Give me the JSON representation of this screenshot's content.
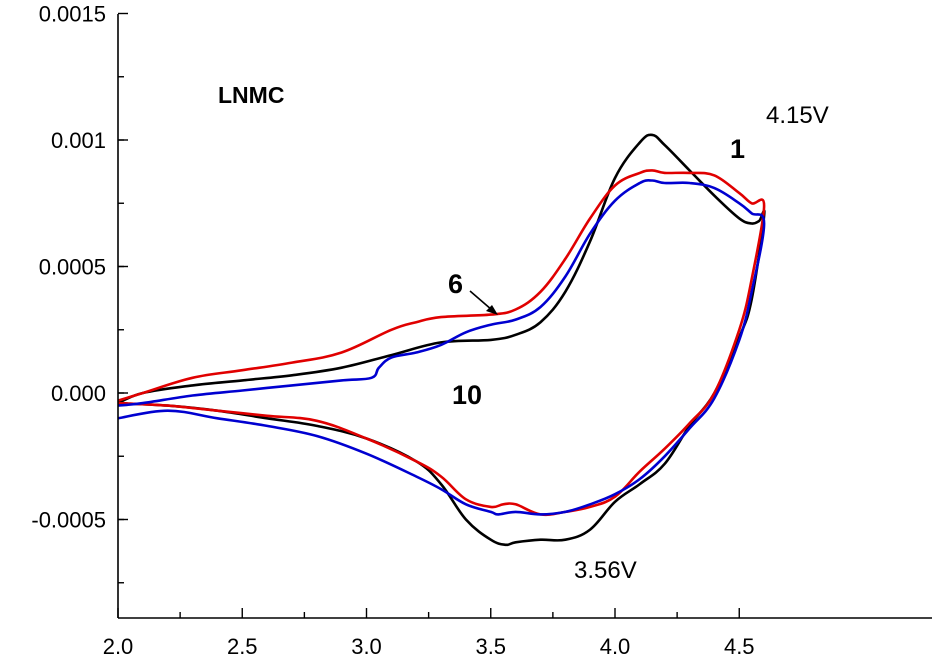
{
  "chart_data": {
    "type": "line",
    "title": "",
    "xlabel": "",
    "ylabel": "",
    "xlim": [
      2.0,
      4.6
    ],
    "ylim": [
      -0.00088,
      0.0015
    ],
    "xticks": [
      "2.0",
      "2.5",
      "3.0",
      "3.5",
      "4.0",
      "4.5"
    ],
    "yticks": [
      "0.0015",
      "0.001",
      "0.0005",
      "0.000",
      "-0.0005"
    ],
    "grid": false,
    "annotations": {
      "sample": "LNMC",
      "peak_ox": "4.15V",
      "peak_red": "3.56V",
      "cycle_1": "1",
      "cycle_6": "6",
      "cycle_10": "10"
    },
    "series": [
      {
        "name": "1",
        "color": "#000000",
        "x": [
          2.0,
          2.1,
          2.3,
          2.5,
          2.7,
          2.9,
          3.1,
          3.3,
          3.5,
          3.6,
          3.7,
          3.8,
          3.9,
          4.0,
          4.1,
          4.15,
          4.2,
          4.3,
          4.4,
          4.5,
          4.55,
          4.58,
          4.6,
          4.55,
          4.5,
          4.4,
          4.3,
          4.2,
          4.1,
          4.0,
          3.9,
          3.8,
          3.7,
          3.6,
          3.56,
          3.5,
          3.4,
          3.3,
          3.2,
          3.0,
          2.8,
          2.6,
          2.4,
          2.2,
          2.0
        ],
        "y": [
          -4e-05,
          0.0,
          3e-05,
          5e-05,
          7e-05,
          0.0001,
          0.00015,
          0.0002,
          0.00021,
          0.00023,
          0.00028,
          0.0004,
          0.0006,
          0.00085,
          0.00099,
          0.00102,
          0.00098,
          0.00088,
          0.00078,
          0.00069,
          0.00067,
          0.00068,
          0.0007,
          0.00037,
          0.00022,
          0.0,
          -0.00013,
          -0.00028,
          -0.00036,
          -0.00043,
          -0.00054,
          -0.00058,
          -0.00058,
          -0.00059,
          -0.0006,
          -0.00058,
          -0.0005,
          -0.00036,
          -0.00027,
          -0.00018,
          -0.00013,
          -0.0001,
          -7e-05,
          -5e-05,
          -4e-05
        ]
      },
      {
        "name": "6",
        "color": "#e00000",
        "x": [
          2.0,
          2.1,
          2.3,
          2.5,
          2.7,
          2.9,
          3.1,
          3.2,
          3.3,
          3.5,
          3.6,
          3.7,
          3.8,
          3.9,
          4.0,
          4.1,
          4.15,
          4.2,
          4.3,
          4.4,
          4.5,
          4.55,
          4.6,
          4.55,
          4.5,
          4.4,
          4.3,
          4.2,
          4.1,
          4.0,
          3.9,
          3.8,
          3.7,
          3.6,
          3.55,
          3.5,
          3.4,
          3.3,
          3.2,
          3.0,
          2.8,
          2.6,
          2.4,
          2.2,
          2.0
        ],
        "y": [
          -3e-05,
          0.0,
          6e-05,
          9e-05,
          0.00012,
          0.00016,
          0.00025,
          0.00028,
          0.0003,
          0.00031,
          0.00033,
          0.0004,
          0.00053,
          0.00069,
          0.00082,
          0.00087,
          0.00088,
          0.00087,
          0.00087,
          0.00086,
          0.00079,
          0.00075,
          0.00074,
          0.00045,
          0.00025,
          0.0,
          -0.00012,
          -0.00022,
          -0.00031,
          -0.00041,
          -0.00045,
          -0.00047,
          -0.00048,
          -0.00044,
          -0.00044,
          -0.00045,
          -0.00042,
          -0.00033,
          -0.00027,
          -0.00018,
          -0.00011,
          -9e-05,
          -7e-05,
          -5e-05,
          -4e-05
        ]
      },
      {
        "name": "10",
        "color": "#0000d0",
        "x": [
          2.0,
          2.1,
          2.3,
          2.5,
          2.7,
          2.9,
          3.02,
          3.05,
          3.1,
          3.2,
          3.3,
          3.4,
          3.5,
          3.6,
          3.7,
          3.8,
          3.9,
          4.0,
          4.1,
          4.15,
          4.2,
          4.3,
          4.4,
          4.5,
          4.55,
          4.6,
          4.55,
          4.5,
          4.4,
          4.3,
          4.2,
          4.1,
          4.0,
          3.9,
          3.8,
          3.7,
          3.6,
          3.53,
          3.5,
          3.4,
          3.3,
          3.2,
          3.0,
          2.8,
          2.6,
          2.4,
          2.2,
          2.0
        ],
        "y": [
          -5e-05,
          -4e-05,
          -1e-05,
          1e-05,
          3e-05,
          5e-05,
          6e-05,
          0.0001,
          0.00014,
          0.00016,
          0.00019,
          0.00024,
          0.00027,
          0.00029,
          0.00034,
          0.00046,
          0.00063,
          0.00076,
          0.00083,
          0.00084,
          0.00083,
          0.00083,
          0.00081,
          0.00075,
          0.00071,
          0.00067,
          0.0004,
          0.00021,
          -2e-05,
          -0.00014,
          -0.00025,
          -0.00034,
          -0.0004,
          -0.00044,
          -0.00047,
          -0.00048,
          -0.00047,
          -0.00048,
          -0.00047,
          -0.00044,
          -0.00038,
          -0.00033,
          -0.00024,
          -0.00017,
          -0.00013,
          -0.0001,
          -7e-05,
          -0.0001
        ]
      }
    ]
  }
}
